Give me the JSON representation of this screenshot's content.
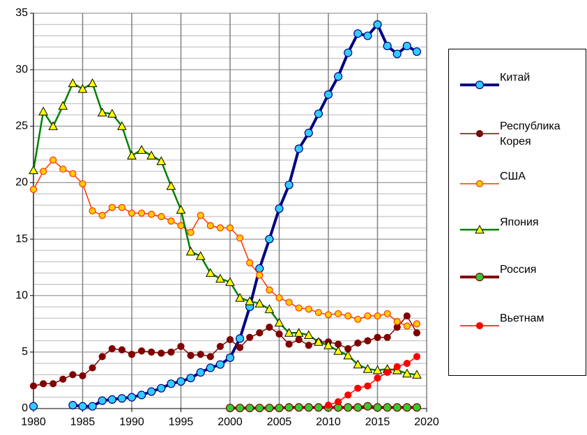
{
  "chart_data": {
    "type": "line",
    "x": [
      1980,
      1981,
      1982,
      1983,
      1984,
      1985,
      1986,
      1987,
      1988,
      1989,
      1990,
      1991,
      1992,
      1993,
      1994,
      1995,
      1996,
      1997,
      1998,
      1999,
      2000,
      2001,
      2002,
      2003,
      2004,
      2005,
      2006,
      2007,
      2008,
      2009,
      2010,
      2011,
      2012,
      2013,
      2014,
      2015,
      2016,
      2017,
      2018,
      2019
    ],
    "xlim": [
      1980,
      2020
    ],
    "xticks": [
      1980,
      1985,
      1990,
      1995,
      2000,
      2005,
      2010,
      2015,
      2020
    ],
    "ylim": [
      0,
      35
    ],
    "yticks": [
      0,
      5,
      10,
      15,
      20,
      25,
      30,
      35
    ],
    "y_minor_ticks": [
      1,
      2,
      3,
      4,
      6,
      7,
      8,
      9,
      11,
      12,
      13,
      14,
      16,
      17,
      18,
      19,
      21,
      22,
      23,
      24,
      26,
      27,
      28,
      29,
      31,
      32,
      33,
      34
    ],
    "grid": true,
    "legend": "right",
    "series": [
      {
        "name": "Китай",
        "color": "#000080",
        "marker_fill": "#33ccff",
        "marker": "circle",
        "line_width": 4,
        "values": [
          0.2,
          null,
          null,
          null,
          0.3,
          0.2,
          0.2,
          0.7,
          0.8,
          0.9,
          1.0,
          1.2,
          1.5,
          1.8,
          2.2,
          2.4,
          2.7,
          3.2,
          3.6,
          3.9,
          4.5,
          6.2,
          9.0,
          12.4,
          15.0,
          17.7,
          19.8,
          23.0,
          24.4,
          26.1,
          27.8,
          29.4,
          31.5,
          33.2,
          33.0,
          34.0,
          32.1,
          31.4,
          32.1,
          31.6
        ]
      },
      {
        "name": "Республика Корея",
        "color": "#800000",
        "marker_fill": "#800000",
        "marker": "circle",
        "line_width": 1.5,
        "values": [
          2.0,
          2.2,
          2.2,
          2.6,
          3.0,
          2.9,
          3.6,
          4.6,
          5.3,
          5.2,
          4.8,
          5.1,
          5.0,
          4.9,
          5.0,
          5.5,
          4.7,
          4.8,
          4.6,
          5.5,
          6.1,
          5.4,
          6.3,
          6.7,
          7.2,
          6.6,
          5.7,
          6.1,
          5.6,
          5.9,
          5.9,
          5.7,
          5.3,
          5.8,
          6.0,
          6.3,
          6.3,
          7.2,
          8.2,
          6.7
        ]
      },
      {
        "name": "США",
        "color": "#ff3300",
        "marker_fill": "#ffcc00",
        "marker": "circle",
        "line_width": 1.5,
        "values": [
          19.4,
          21.0,
          22.0,
          21.2,
          20.8,
          19.9,
          17.5,
          17.1,
          17.8,
          17.8,
          17.3,
          17.3,
          17.2,
          17.0,
          16.6,
          16.2,
          15.6,
          17.1,
          16.2,
          16.0,
          16.0,
          15.1,
          12.9,
          11.8,
          10.5,
          9.8,
          9.4,
          8.9,
          8.8,
          8.5,
          8.3,
          8.4,
          8.2,
          7.9,
          8.2,
          8.2,
          8.4,
          7.7,
          7.3,
          7.5
        ]
      },
      {
        "name": "Япония",
        "color": "#008000",
        "marker_fill": "#ffff00",
        "marker": "triangle",
        "line_width": 2.5,
        "values": [
          21.1,
          26.3,
          25.0,
          26.8,
          28.8,
          28.3,
          28.8,
          26.2,
          26.1,
          25.0,
          22.4,
          22.9,
          22.4,
          21.9,
          19.7,
          17.6,
          13.9,
          13.5,
          12.0,
          11.5,
          11.2,
          9.8,
          9.5,
          9.3,
          8.8,
          7.6,
          6.7,
          6.7,
          6.5,
          5.9,
          5.6,
          5.1,
          4.7,
          3.9,
          3.5,
          3.4,
          3.5,
          3.4,
          3.1,
          3.0
        ]
      },
      {
        "name": "Россия",
        "color": "#800000",
        "marker_fill": "#33cc33",
        "marker": "circle",
        "line_width": 4,
        "values": [
          null,
          null,
          null,
          null,
          null,
          null,
          null,
          null,
          null,
          null,
          null,
          null,
          null,
          null,
          null,
          null,
          null,
          null,
          null,
          null,
          0.05,
          0.05,
          0.05,
          0.05,
          0.05,
          0.05,
          0.1,
          0.1,
          0.1,
          0.1,
          0.1,
          0.1,
          0.1,
          0.1,
          0.2,
          0.1,
          0.1,
          0.1,
          0.1,
          0.1
        ]
      },
      {
        "name": "Вьетнам",
        "color": "#ff0000",
        "marker_fill": "#ff0000",
        "marker": "circle",
        "line_width": 1.5,
        "values": [
          null,
          null,
          null,
          null,
          null,
          null,
          null,
          null,
          null,
          null,
          null,
          null,
          null,
          null,
          null,
          null,
          null,
          null,
          null,
          null,
          null,
          null,
          null,
          null,
          null,
          null,
          null,
          null,
          null,
          null,
          0.3,
          0.6,
          1.2,
          1.8,
          2.0,
          2.7,
          3.2,
          3.7,
          4.0,
          4.6
        ]
      }
    ]
  }
}
